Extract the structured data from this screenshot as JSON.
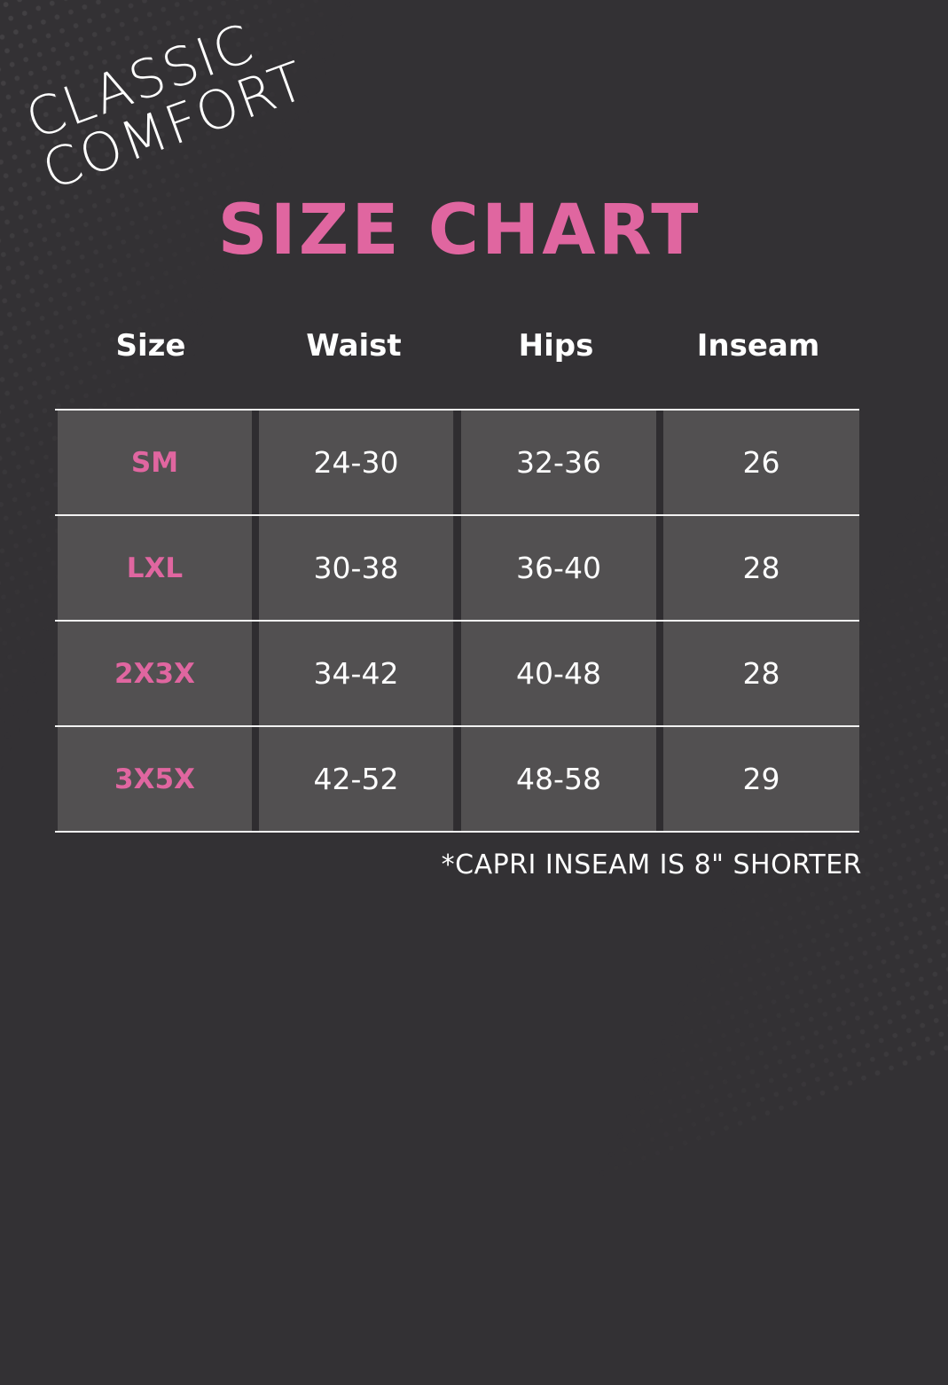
{
  "brand": {
    "line1": "CLASSIC",
    "line2": "COMFORT"
  },
  "title": "SIZE CHART",
  "colors": {
    "accent": "#e066a0",
    "background": "#333134",
    "cell": "#525051"
  },
  "table": {
    "headers": [
      "Size",
      "Waist",
      "Hips",
      "Inseam"
    ],
    "rows": [
      [
        "SM",
        "24-30",
        "32-36",
        "26"
      ],
      [
        "LXL",
        "30-38",
        "36-40",
        "28"
      ],
      [
        "2X3X",
        "34-42",
        "40-48",
        "28"
      ],
      [
        "3X5X",
        "42-52",
        "48-58",
        "29"
      ]
    ]
  },
  "footnote": "*CAPRI INSEAM IS 8\" SHORTER"
}
